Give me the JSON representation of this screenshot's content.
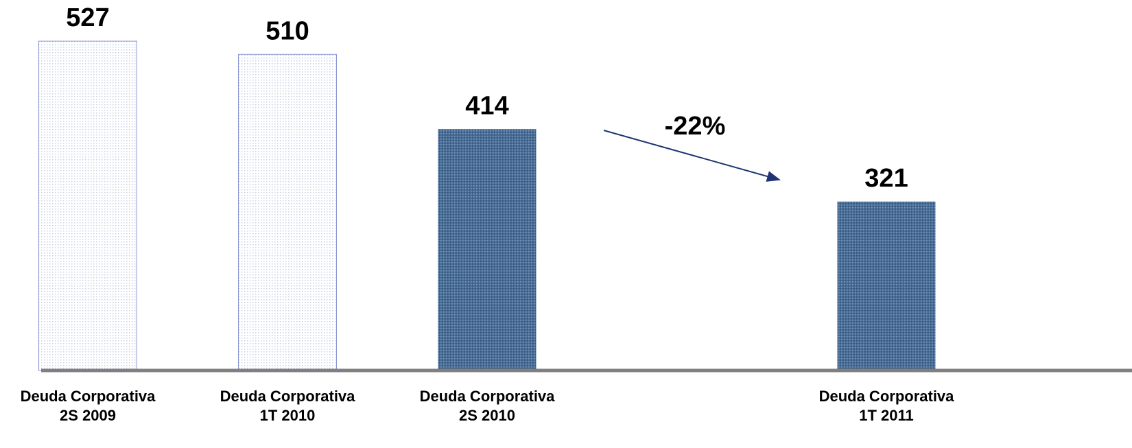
{
  "chart_data": {
    "type": "bar",
    "categories": [
      [
        "Deuda Corporativa",
        "2S 2009"
      ],
      [
        "Deuda Corporativa",
        "1T 2010"
      ],
      [
        "Deuda Corporativa",
        "2S 2010"
      ],
      null,
      [
        "Deuda Corporativa",
        "1T 2011"
      ]
    ],
    "values": [
      527,
      510,
      414,
      null,
      321
    ],
    "colors": [
      "#c9d0e6",
      "#c9d0e6",
      "#4a6e96",
      null,
      "#4a6e96"
    ],
    "ylim": [
      104,
      527
    ],
    "annotations": [
      {
        "text": "-22%"
      }
    ]
  }
}
